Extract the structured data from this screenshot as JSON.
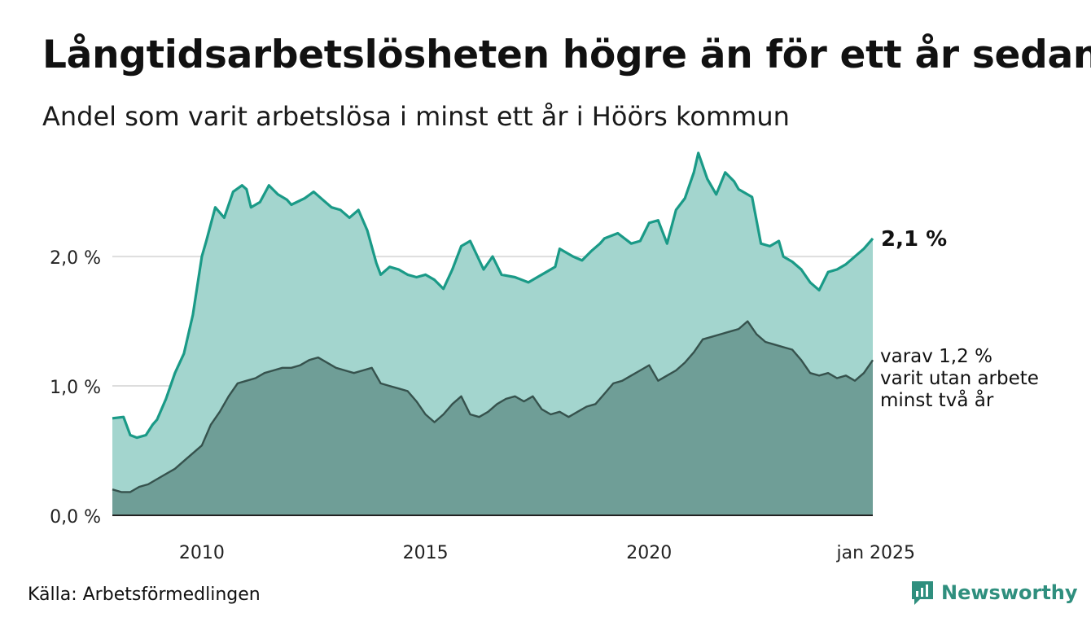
{
  "header": {
    "title": "Långtidsarbetslösheten högre än för ett år sedan",
    "subtitle": "Andel som varit arbetslösa i minst ett år i Höörs kommun"
  },
  "footer": {
    "source": "Källa: Arbetsförmedlingen",
    "brand": "Newsworthy"
  },
  "chart_data": {
    "type": "area",
    "title": "Långtidsarbetslösheten högre än för ett år sedan",
    "subtitle": "Andel som varit arbetslösa i minst ett år i Höörs kommun",
    "xlabel": "",
    "ylabel": "",
    "x_ticks": [
      {
        "label": "2010",
        "value": 2010
      },
      {
        "label": "2015",
        "value": 2015
      },
      {
        "label": "2020",
        "value": 2020
      },
      {
        "label": "jan 2025",
        "value": 2025
      }
    ],
    "y_ticks": [
      {
        "label": "0,0 %",
        "value": 0
      },
      {
        "label": "1,0 %",
        "value": 1
      },
      {
        "label": "2,0 %",
        "value": 2
      }
    ],
    "ylim": [
      0,
      2.85
    ],
    "xlim": [
      2008.0,
      2025.0
    ],
    "grid": "horizontal",
    "colors": {
      "series1_line": "#1a9a87",
      "series1_fill": "#a3d5ce",
      "series2_line": "#36524d",
      "series2_fill": "#6f9e97",
      "grid": "#dddddd"
    },
    "annotations": {
      "series1_end": "2,1 %",
      "series2_end": [
        "varav 1,2 %",
        "varit utan arbete",
        "minst två år"
      ]
    },
    "series": [
      {
        "x": [
          2008.0,
          2008.25,
          2008.4,
          2008.55,
          2008.75,
          2008.9,
          2009.0,
          2009.2,
          2009.4,
          2009.6,
          2009.8,
          2010.0,
          2010.1,
          2010.3,
          2010.5,
          2010.7,
          2010.9,
          2011.0,
          2011.1,
          2011.3,
          2011.5,
          2011.7,
          2011.9,
          2012.0,
          2012.3,
          2012.5,
          2012.7,
          2012.9,
          2013.1,
          2013.3,
          2013.5,
          2013.7,
          2013.9,
          2014.0,
          2014.2,
          2014.4,
          2014.6,
          2014.8,
          2015.0,
          2015.2,
          2015.4,
          2015.6,
          2015.8,
          2016.0,
          2016.3,
          2016.5,
          2016.7,
          2017.0,
          2017.3,
          2017.5,
          2017.7,
          2017.9,
          2018.0,
          2018.3,
          2018.5,
          2018.7,
          2018.9,
          2019.0,
          2019.3,
          2019.6,
          2019.8,
          2020.0,
          2020.2,
          2020.4,
          2020.6,
          2020.8,
          2021.0,
          2021.1,
          2021.3,
          2021.5,
          2021.7,
          2021.9,
          2022.0,
          2022.3,
          2022.5,
          2022.7,
          2022.9,
          2023.0,
          2023.2,
          2023.4,
          2023.6,
          2023.8,
          2024.0,
          2024.2,
          2024.4,
          2024.6,
          2024.8,
          2025.0
        ],
        "values": [
          0.75,
          0.76,
          0.62,
          0.6,
          0.62,
          0.7,
          0.74,
          0.9,
          1.1,
          1.25,
          1.55,
          2.0,
          2.12,
          2.38,
          2.3,
          2.5,
          2.55,
          2.52,
          2.38,
          2.42,
          2.55,
          2.48,
          2.44,
          2.4,
          2.45,
          2.5,
          2.44,
          2.38,
          2.36,
          2.3,
          2.36,
          2.2,
          1.95,
          1.86,
          1.92,
          1.9,
          1.86,
          1.84,
          1.86,
          1.82,
          1.75,
          1.9,
          2.08,
          2.12,
          1.9,
          2.0,
          1.86,
          1.84,
          1.8,
          1.84,
          1.88,
          1.92,
          2.06,
          2.0,
          1.97,
          2.04,
          2.1,
          2.14,
          2.18,
          2.1,
          2.12,
          2.26,
          2.28,
          2.1,
          2.36,
          2.45,
          2.65,
          2.8,
          2.6,
          2.48,
          2.65,
          2.58,
          2.52,
          2.46,
          2.1,
          2.08,
          2.12,
          2.0,
          1.96,
          1.9,
          1.8,
          1.74,
          1.88,
          1.9,
          1.94,
          2.0,
          2.06,
          2.14
        ]
      },
      {
        "x": [
          2008.0,
          2008.2,
          2008.4,
          2008.6,
          2008.8,
          2009.0,
          2009.2,
          2009.4,
          2009.6,
          2009.8,
          2010.0,
          2010.2,
          2010.4,
          2010.6,
          2010.8,
          2011.0,
          2011.2,
          2011.4,
          2011.6,
          2011.8,
          2012.0,
          2012.2,
          2012.4,
          2012.6,
          2012.8,
          2013.0,
          2013.2,
          2013.4,
          2013.6,
          2013.8,
          2014.0,
          2014.2,
          2014.4,
          2014.6,
          2014.8,
          2015.0,
          2015.2,
          2015.4,
          2015.6,
          2015.8,
          2016.0,
          2016.2,
          2016.4,
          2016.6,
          2016.8,
          2017.0,
          2017.2,
          2017.4,
          2017.6,
          2017.8,
          2018.0,
          2018.2,
          2018.4,
          2018.6,
          2018.8,
          2019.0,
          2019.2,
          2019.4,
          2019.6,
          2019.8,
          2020.0,
          2020.2,
          2020.4,
          2020.6,
          2020.8,
          2021.0,
          2021.2,
          2021.4,
          2021.6,
          2021.8,
          2022.0,
          2022.2,
          2022.4,
          2022.6,
          2022.8,
          2023.0,
          2023.2,
          2023.4,
          2023.6,
          2023.8,
          2024.0,
          2024.2,
          2024.4,
          2024.6,
          2024.8,
          2025.0
        ],
        "values": [
          0.2,
          0.18,
          0.18,
          0.22,
          0.24,
          0.28,
          0.32,
          0.36,
          0.42,
          0.48,
          0.54,
          0.7,
          0.8,
          0.92,
          1.02,
          1.04,
          1.06,
          1.1,
          1.12,
          1.14,
          1.14,
          1.16,
          1.2,
          1.22,
          1.18,
          1.14,
          1.12,
          1.1,
          1.12,
          1.14,
          1.02,
          1.0,
          0.98,
          0.96,
          0.88,
          0.78,
          0.72,
          0.78,
          0.86,
          0.92,
          0.78,
          0.76,
          0.8,
          0.86,
          0.9,
          0.92,
          0.88,
          0.92,
          0.82,
          0.78,
          0.8,
          0.76,
          0.8,
          0.84,
          0.86,
          0.94,
          1.02,
          1.04,
          1.08,
          1.12,
          1.16,
          1.04,
          1.08,
          1.12,
          1.18,
          1.26,
          1.36,
          1.38,
          1.4,
          1.42,
          1.44,
          1.5,
          1.4,
          1.34,
          1.32,
          1.3,
          1.28,
          1.2,
          1.1,
          1.08,
          1.1,
          1.06,
          1.08,
          1.04,
          1.1,
          1.2
        ]
      }
    ]
  }
}
